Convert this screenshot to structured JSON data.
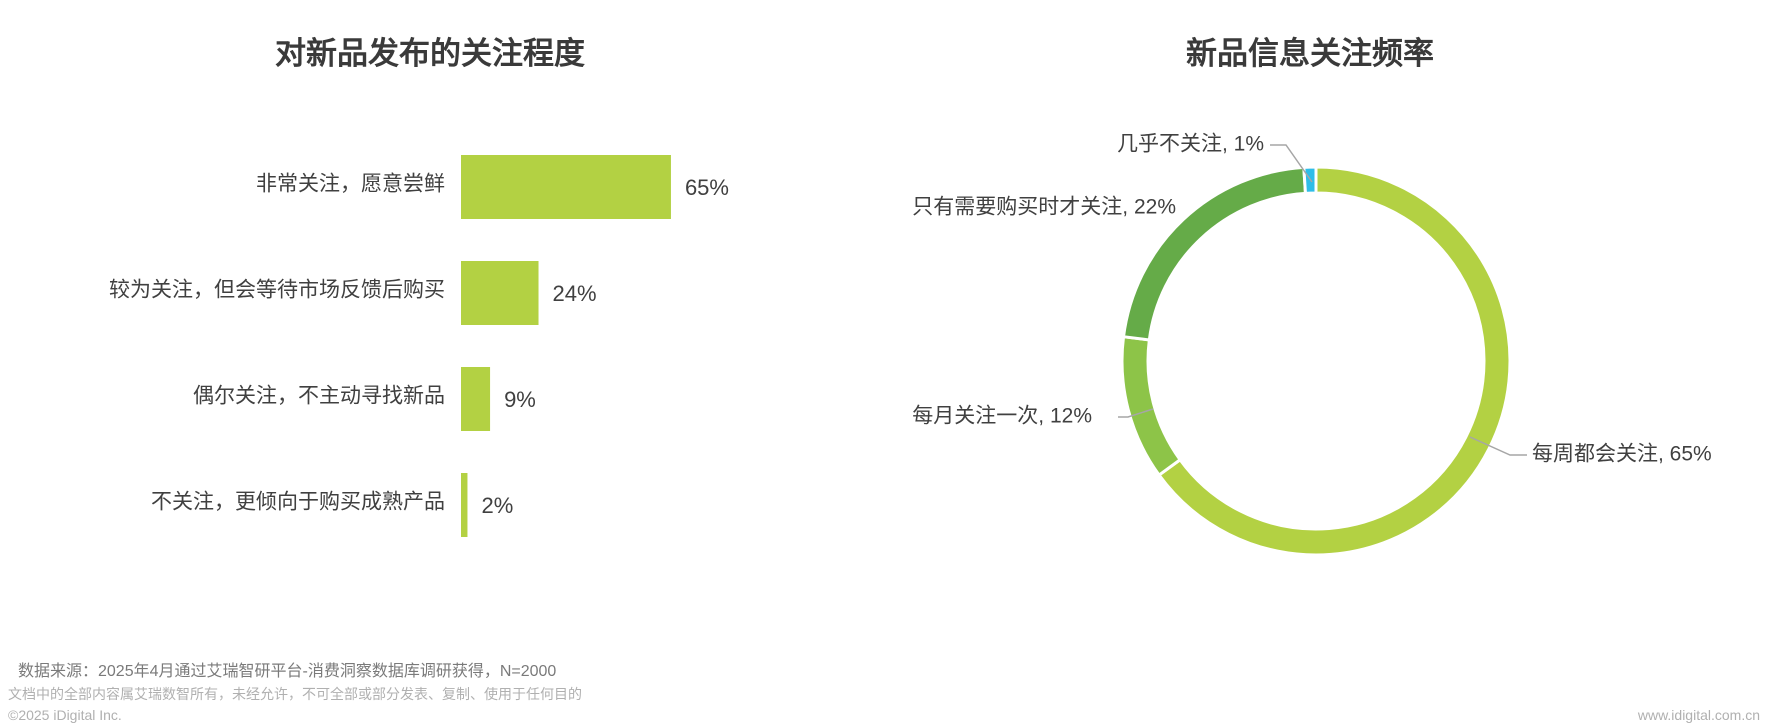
{
  "chart_data": [
    {
      "type": "bar",
      "title": "对新品发布的关注程度",
      "orientation": "horizontal",
      "categories": [
        "非常关注，愿意尝鲜",
        "较为关注，但会等待市场反馈后购买",
        "偶尔关注，不主动寻找新品",
        "不关注，更倾向于购买成熟产品"
      ],
      "values": [
        65,
        24,
        9,
        2
      ],
      "value_labels": [
        "65%",
        "24%",
        "9%",
        "2%"
      ],
      "unit": "%",
      "xlim": [
        0,
        100
      ],
      "bar_color": "#b3d143",
      "grid": false
    },
    {
      "type": "pie",
      "variant": "donut",
      "title": "新品信息关注频率",
      "slices": [
        {
          "label": "每周都会关注",
          "value": 65,
          "text": "每周都会关注, 65%",
          "color": "#b3d143"
        },
        {
          "label": "每月关注一次",
          "value": 12,
          "text": "每月关注一次, 12%",
          "color": "#8dc448"
        },
        {
          "label": "只有需要购买时才关注",
          "value": 22,
          "text": "只有需要购买时才关注, 22%",
          "color": "#65ab48"
        },
        {
          "label": "几乎不关注",
          "value": 1,
          "text": "几乎不关注, 1%",
          "color": "#2ebde8"
        }
      ]
    }
  ],
  "footer": {
    "source": "数据来源：2025年4月通过艾瑞智研平台-消费洞察数据库调研获得，N=2000",
    "disclaimer": "文档中的全部内容属艾瑞数智所有，未经允许，不可全部或部分发表、复制、使用于任何目的",
    "copyright": "©2025 iDigital Inc.",
    "website": "www.idigital.com.cn"
  }
}
